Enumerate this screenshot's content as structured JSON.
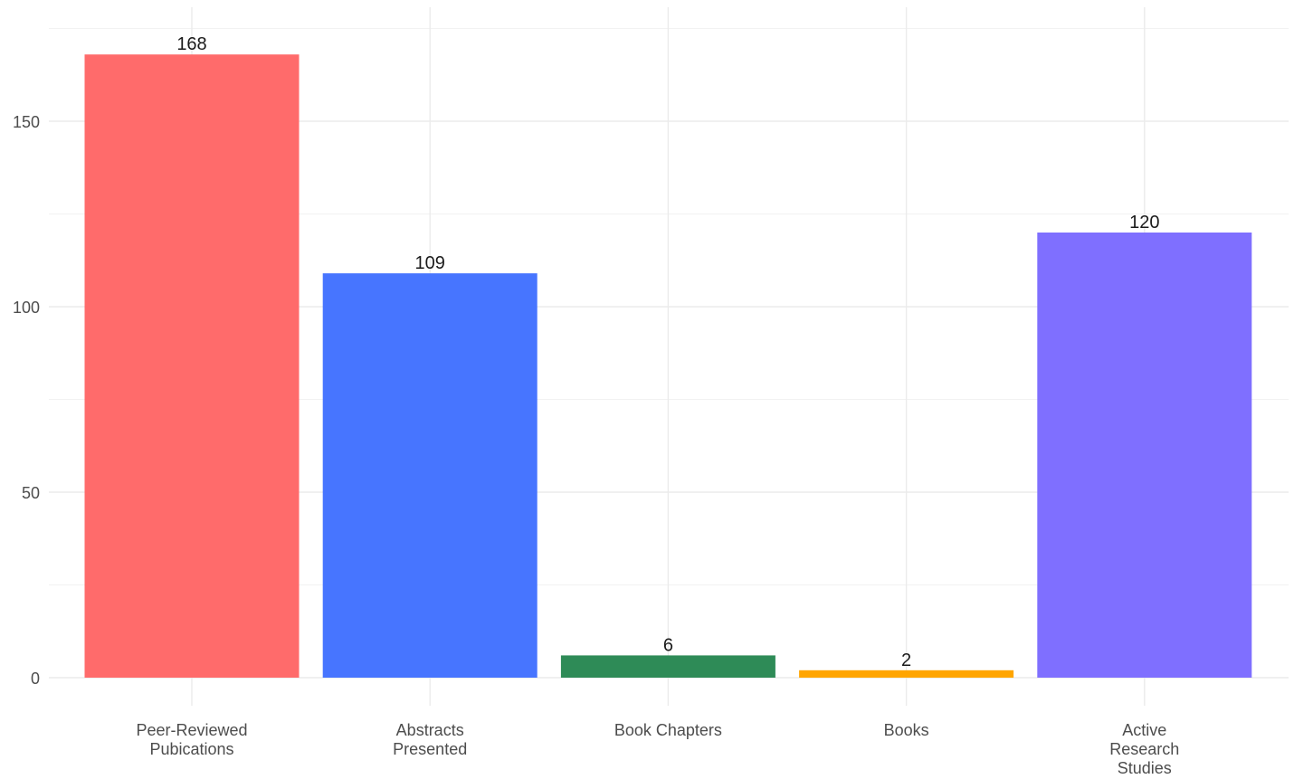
{
  "chart_data": {
    "type": "bar",
    "title": "",
    "xlabel": "",
    "ylabel": "",
    "categories": [
      [
        "Peer-Reviewed",
        "Pubications"
      ],
      [
        "Abstracts",
        "Presented"
      ],
      [
        "Book Chapters"
      ],
      [
        "Books"
      ],
      [
        "Active",
        "Research",
        "Studies"
      ]
    ],
    "values": [
      168,
      109,
      6,
      2,
      120
    ],
    "data_labels": [
      "168",
      "109",
      "6",
      "2",
      "120"
    ],
    "colors": [
      "#FF6B6B",
      "#4775FF",
      "#2E8B57",
      "#FFA500",
      "#7F6FFF"
    ],
    "ylim": [
      0,
      175
    ],
    "y_ticks": [
      0,
      50,
      100,
      150
    ],
    "y_tick_labels": [
      "0",
      "50",
      "100",
      "150"
    ],
    "y_minor_ticks": [
      25,
      75,
      125,
      175
    ],
    "grid": true,
    "legend": "none"
  }
}
